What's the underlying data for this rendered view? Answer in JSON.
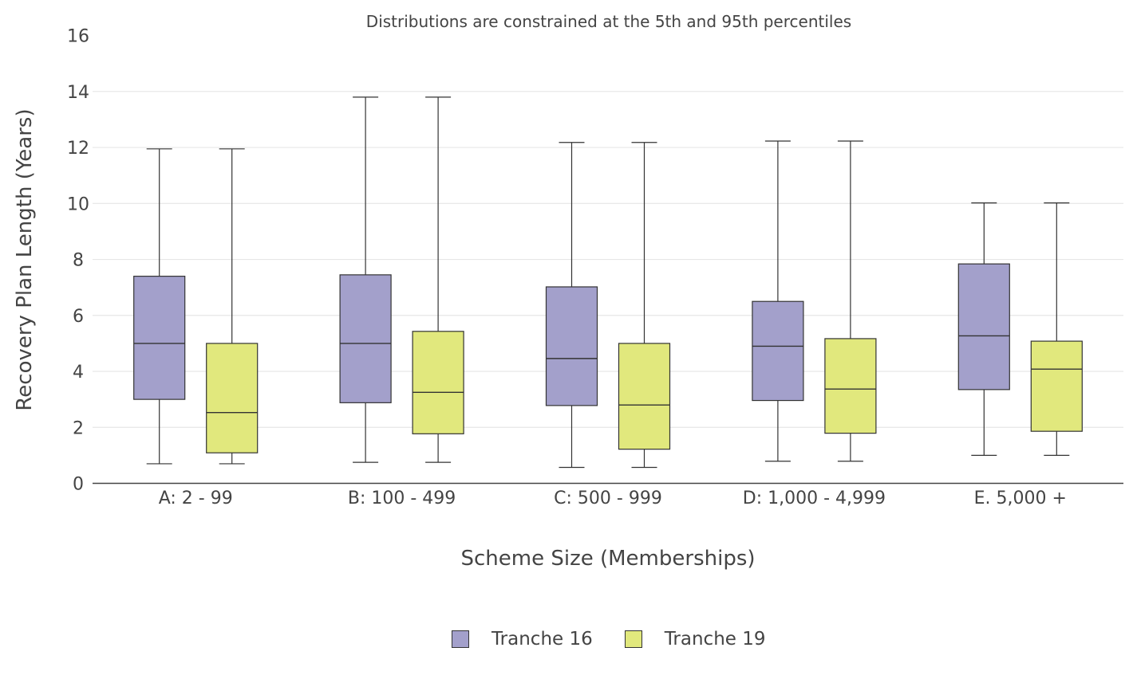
{
  "chart_data": {
    "type": "box",
    "title": "Distributions are constrained at the 5th and 95th percentiles",
    "xlabel": "Scheme Size (Memberships)",
    "ylabel": "Recovery Plan Length (Years)",
    "ylim": [
      0,
      16
    ],
    "yticks": [
      "0",
      "2",
      "4",
      "6",
      "8",
      "10",
      "12",
      "14",
      "16"
    ],
    "grid": true,
    "legend_position": "bottom",
    "categories": [
      "A: 2 - 99",
      "B: 100 - 499",
      "C: 500 - 999",
      "D: 1,000 - 4,999",
      "E. 5,000 +"
    ],
    "series": [
      {
        "name": "Tranche 16",
        "color": "#a3a0cb",
        "boxes": [
          {
            "whisker_low": 0.7,
            "q1": 3.0,
            "median": 5.0,
            "q3": 7.4,
            "whisker_high": 11.95
          },
          {
            "whisker_low": 0.75,
            "q1": 2.88,
            "median": 5.0,
            "q3": 7.45,
            "whisker_high": 13.8
          },
          {
            "whisker_low": 0.57,
            "q1": 2.78,
            "median": 4.46,
            "q3": 7.02,
            "whisker_high": 12.18
          },
          {
            "whisker_low": 0.79,
            "q1": 2.96,
            "median": 4.9,
            "q3": 6.5,
            "whisker_high": 12.23
          },
          {
            "whisker_low": 1.0,
            "q1": 3.35,
            "median": 5.27,
            "q3": 7.84,
            "whisker_high": 10.02
          }
        ]
      },
      {
        "name": "Tranche 19",
        "color": "#e1e87d",
        "boxes": [
          {
            "whisker_low": 0.7,
            "q1": 1.09,
            "median": 2.53,
            "q3": 5.0,
            "whisker_high": 11.95
          },
          {
            "whisker_low": 0.75,
            "q1": 1.77,
            "median": 3.25,
            "q3": 5.43,
            "whisker_high": 13.8
          },
          {
            "whisker_low": 0.57,
            "q1": 1.22,
            "median": 2.8,
            "q3": 5.0,
            "whisker_high": 12.18
          },
          {
            "whisker_low": 0.79,
            "q1": 1.79,
            "median": 3.37,
            "q3": 5.17,
            "whisker_high": 12.23
          },
          {
            "whisker_low": 1.0,
            "q1": 1.86,
            "median": 4.08,
            "q3": 5.08,
            "whisker_high": 10.02
          }
        ]
      }
    ]
  }
}
